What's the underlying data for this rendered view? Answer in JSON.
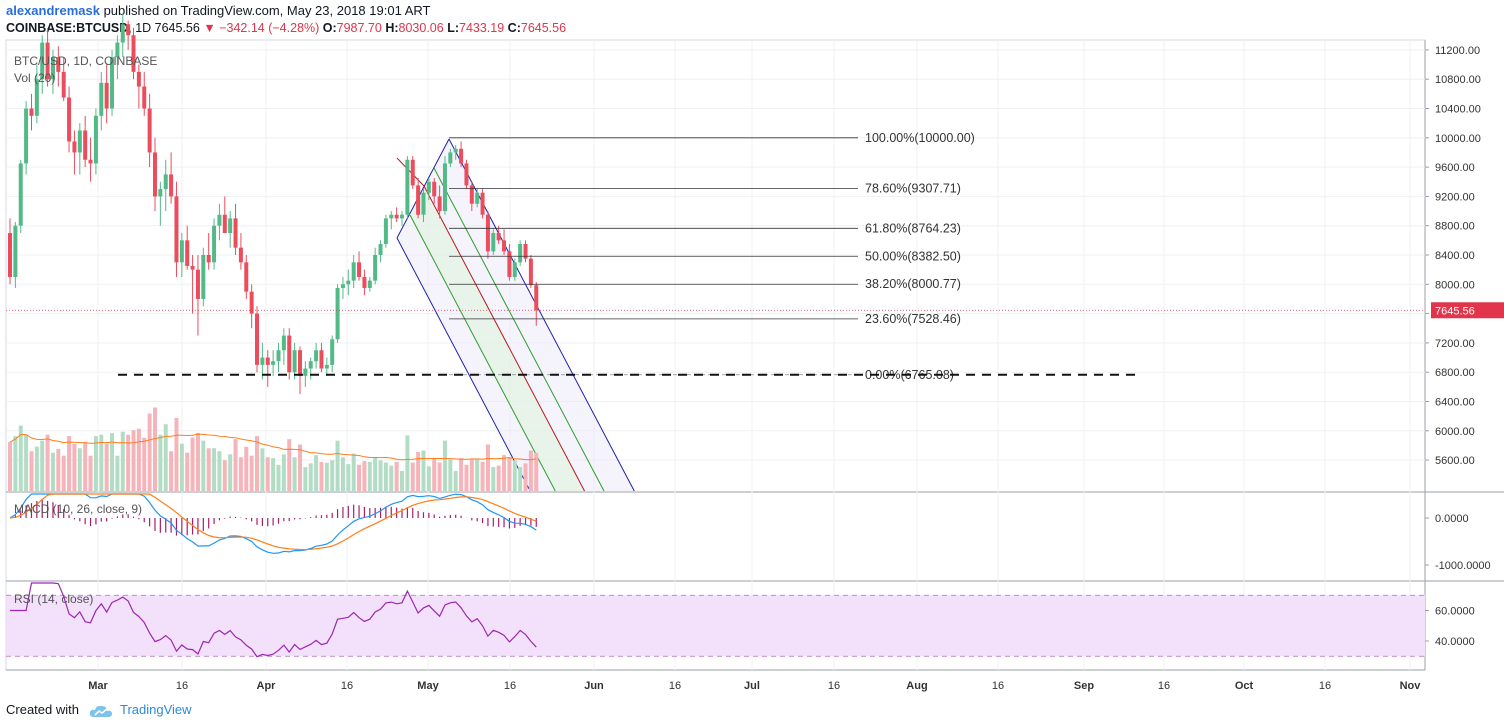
{
  "header": {
    "author": "alexandremask",
    "published_text": " published on TradingView.com, May 23, 2018 19:01 ART",
    "symbol": "COINBASE:BTCUSD",
    "interval": "1D",
    "last": "7645.56",
    "change": "−342.14 (−4.28%)",
    "o_label": "O:",
    "o_value": "7987.70",
    "h_label": "H:",
    "h_value": "8030.06",
    "l_label": "L:",
    "l_value": "7433.19",
    "c_label": "C:",
    "c_value": "7645.56"
  },
  "footer": {
    "created_with": "Created with",
    "brand": "TradingView"
  },
  "colors": {
    "up": "#53b987",
    "down": "#eb4d5c",
    "vol_up": "#b3dcc5",
    "vol_down": "#f5b3ba",
    "fib_line": "#333333",
    "channel_blue": "#1e22a8",
    "channel_red": "#b71c1c",
    "channel_green": "#2e9e2e",
    "macd": "#2196f3",
    "signal": "#ff7f1a",
    "rsi": "#9c27b0",
    "last_price": "#e0354a"
  },
  "chart_data": {
    "type": "candlestick",
    "legend": {
      "main": "BTC/USD, 1D, COINBASE",
      "volume": "Vol (20)",
      "macd": "MACD (10, 26, close, 9)",
      "rsi": "RSI (14, close)"
    },
    "price_axis": {
      "ticks": [
        "11200.00",
        "10800.00",
        "10400.00",
        "10000.00",
        "9600.00",
        "9200.00",
        "8800.00",
        "8400.00",
        "8000.00",
        "7600.00",
        "7200.00",
        "6800.00",
        "6400.00",
        "6000.00",
        "5600.00"
      ],
      "last_label": "7645.56"
    },
    "macd_axis": {
      "ticks": [
        "0.0000",
        "-1000.0000"
      ]
    },
    "rsi_axis": {
      "ticks": [
        "60.0000",
        "40.0000"
      ],
      "bands": [
        70,
        30
      ]
    },
    "x_ticks": [
      "Mar",
      "16",
      "Apr",
      "16",
      "May",
      "16",
      "Jun",
      "16",
      "Jul",
      "16",
      "Aug",
      "16",
      "Sep",
      "16",
      "Oct",
      "16",
      "Nov"
    ],
    "fib_levels": [
      {
        "label": "100.00%(10000.00)",
        "price": 10000.0
      },
      {
        "label": "78.60%(9307.71)",
        "price": 9307.71
      },
      {
        "label": "61.80%(8764.23)",
        "price": 8764.23
      },
      {
        "label": "50.00%(8382.50)",
        "price": 8382.5
      },
      {
        "label": "38.20%(8000.77)",
        "price": 8000.77
      },
      {
        "label": "23.60%(7528.46)",
        "price": 7528.46
      },
      {
        "label": "0.00%(6765.08)",
        "price": 6765.08
      }
    ],
    "support_level": 6765.08,
    "candles": [
      [
        8700,
        8900,
        8000,
        8100
      ],
      [
        8100,
        8850,
        7950,
        8800
      ],
      [
        8800,
        9700,
        8700,
        9650
      ],
      [
        9650,
        10500,
        9500,
        10400
      ],
      [
        10400,
        10600,
        10100,
        10300
      ],
      [
        10300,
        11000,
        10200,
        10800
      ],
      [
        10800,
        11400,
        10600,
        11300
      ],
      [
        11300,
        11500,
        10700,
        10800
      ],
      [
        10800,
        11200,
        10600,
        11100
      ],
      [
        11100,
        11250,
        10700,
        10900
      ],
      [
        10900,
        11100,
        10500,
        10550
      ],
      [
        10550,
        10700,
        9800,
        9950
      ],
      [
        9950,
        10100,
        9500,
        9800
      ],
      [
        9800,
        10200,
        9500,
        10100
      ],
      [
        10100,
        10300,
        9600,
        9700
      ],
      [
        9700,
        10000,
        9400,
        9650
      ],
      [
        9650,
        10400,
        9500,
        10300
      ],
      [
        10300,
        10900,
        10100,
        10750
      ],
      [
        10750,
        11000,
        10200,
        10400
      ],
      [
        10400,
        11200,
        10300,
        11100
      ],
      [
        11100,
        11400,
        10800,
        11300
      ],
      [
        11300,
        11700,
        11100,
        11550
      ],
      [
        11550,
        11600,
        11200,
        11400
      ],
      [
        11400,
        11500,
        10800,
        10900
      ],
      [
        10900,
        11000,
        10400,
        10700
      ],
      [
        10700,
        10900,
        10300,
        10400
      ],
      [
        10400,
        10600,
        9600,
        9800
      ],
      [
        9800,
        10000,
        9000,
        9200
      ],
      [
        9200,
        9400,
        8800,
        9300
      ],
      [
        9300,
        9700,
        9000,
        9500
      ],
      [
        9500,
        9800,
        9100,
        9200
      ],
      [
        9200,
        9400,
        8100,
        8300
      ],
      [
        8300,
        8700,
        8100,
        8600
      ],
      [
        8600,
        8800,
        8200,
        8250
      ],
      [
        8250,
        8400,
        7600,
        8200
      ],
      [
        8200,
        8400,
        7300,
        7800
      ],
      [
        7800,
        8500,
        7700,
        8400
      ],
      [
        8400,
        8700,
        8200,
        8300
      ],
      [
        8300,
        8900,
        8200,
        8800
      ],
      [
        8800,
        9100,
        8600,
        8950
      ],
      [
        8950,
        9200,
        8700,
        8700
      ],
      [
        8700,
        9000,
        8500,
        8900
      ],
      [
        8900,
        9100,
        8400,
        8500
      ],
      [
        8500,
        8700,
        8200,
        8300
      ],
      [
        8300,
        8400,
        7800,
        7900
      ],
      [
        7900,
        8000,
        7400,
        7600
      ],
      [
        7600,
        7700,
        6800,
        6900
      ],
      [
        6900,
        7200,
        6700,
        7000
      ],
      [
        7000,
        7100,
        6600,
        6900
      ],
      [
        6900,
        7100,
        6750,
        6950
      ],
      [
        6950,
        7200,
        6800,
        7100
      ],
      [
        7100,
        7400,
        6900,
        7300
      ],
      [
        7300,
        7400,
        6700,
        6800
      ],
      [
        6800,
        7200,
        6700,
        7100
      ],
      [
        7100,
        7150,
        6500,
        6750
      ],
      [
        6750,
        6950,
        6600,
        6850
      ],
      [
        6850,
        7000,
        6700,
        6950
      ],
      [
        6950,
        7200,
        6850,
        7100
      ],
      [
        7100,
        7200,
        6800,
        6850
      ],
      [
        6850,
        7000,
        6750,
        6900
      ],
      [
        6900,
        7300,
        6800,
        7250
      ],
      [
        7250,
        8000,
        7200,
        7950
      ],
      [
        7950,
        8100,
        7800,
        8000
      ],
      [
        8000,
        8200,
        7850,
        8050
      ],
      [
        8050,
        8400,
        7950,
        8300
      ],
      [
        8300,
        8450,
        8050,
        8100
      ],
      [
        8100,
        8200,
        7850,
        7950
      ],
      [
        7950,
        8100,
        7900,
        8050
      ],
      [
        8050,
        8500,
        8000,
        8400
      ],
      [
        8400,
        8600,
        8300,
        8550
      ],
      [
        8550,
        8950,
        8500,
        8900
      ],
      [
        8900,
        9000,
        8750,
        8950
      ],
      [
        8950,
        9050,
        8850,
        8900
      ],
      [
        8900,
        9000,
        8800,
        8950
      ],
      [
        8950,
        9750,
        8900,
        9700
      ],
      [
        9700,
        9750,
        9300,
        9350
      ],
      [
        9350,
        9450,
        8900,
        8950
      ],
      [
        8950,
        9300,
        8850,
        9250
      ],
      [
        9250,
        9450,
        9150,
        9400
      ],
      [
        9400,
        9450,
        9100,
        9200
      ],
      [
        9200,
        9350,
        8900,
        9000
      ],
      [
        9000,
        9750,
        8950,
        9650
      ],
      [
        9650,
        9850,
        9600,
        9800
      ],
      [
        9800,
        9900,
        9700,
        9850
      ],
      [
        9850,
        9950,
        9600,
        9650
      ],
      [
        9650,
        9700,
        9300,
        9350
      ],
      [
        9350,
        9400,
        9000,
        9100
      ],
      [
        9100,
        9300,
        9050,
        9250
      ],
      [
        9250,
        9300,
        8900,
        8950
      ],
      [
        8950,
        9000,
        8350,
        8450
      ],
      [
        8450,
        8750,
        8400,
        8700
      ],
      [
        8700,
        8800,
        8550,
        8600
      ],
      [
        8600,
        8750,
        8400,
        8450
      ],
      [
        8450,
        8550,
        8050,
        8100
      ],
      [
        8100,
        8350,
        8050,
        8300
      ],
      [
        8300,
        8600,
        8250,
        8550
      ],
      [
        8550,
        8600,
        8300,
        8350
      ],
      [
        8350,
        8400,
        7950,
        7988
      ],
      [
        7988,
        8030,
        7433,
        7645
      ]
    ]
  }
}
